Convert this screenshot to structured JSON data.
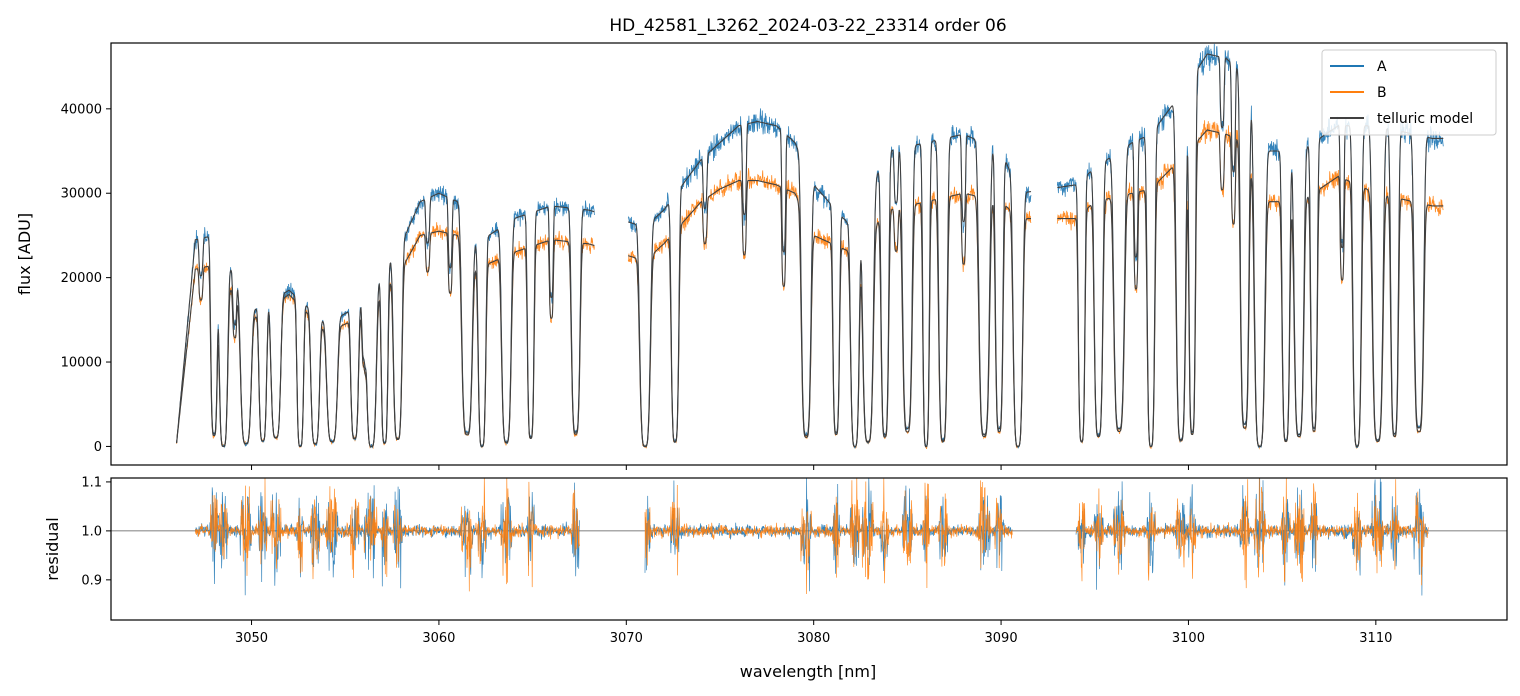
{
  "chart_data": [
    {
      "type": "line",
      "panel": "spectrum",
      "title": "HD_42581_L3262_2024-03-22_23314  order 06",
      "xlabel": "",
      "ylabel": "flux [ADU]",
      "xlim": [
        3042.5,
        3117.0
      ],
      "ylim": [
        -2200,
        47800
      ],
      "yticks": [
        0,
        10000,
        20000,
        30000,
        40000
      ],
      "xticks": [
        3050,
        3060,
        3070,
        3080,
        3090,
        3100,
        3110
      ],
      "grid": false,
      "legend_position": "top-right",
      "segments": [
        [
          3046.0,
          3068.3
        ],
        [
          3070.1,
          3091.6
        ],
        [
          3093.0,
          3113.6
        ]
      ],
      "series": [
        {
          "name": "A",
          "color": "#1f77b4",
          "envelope": {
            "x": [
              3046,
              3047,
              3048,
              3050,
              3052,
              3054,
              3056,
              3058,
              3059,
              3060,
              3061,
              3062,
              3064,
              3066,
              3068,
              3071,
              3072,
              3074,
              3075,
              3076,
              3077,
              3078,
              3079,
              3080,
              3082,
              3084,
              3086,
              3088,
              3090,
              3091,
              3094,
              3095,
              3097,
              3098,
              3100,
              3101,
              3102,
              3103,
              3104,
              3106,
              3108,
              3110,
              3112,
              3113
            ],
            "y": [
              400,
              24500,
              25000,
              16000,
              18500,
              14500,
              17000,
              24000,
              29000,
              30000,
              29000,
              24000,
              27000,
              28500,
              28000,
              26000,
              28000,
              34000,
              36000,
              38000,
              38500,
              38000,
              36000,
              31000,
              26000,
              35000,
              36000,
              37000,
              35000,
              30000,
              31000,
              33000,
              36000,
              37000,
              43000,
              46500,
              46000,
              44000,
              35000,
              35000,
              38000,
              38000,
              37000,
              36500
            ]
          }
        },
        {
          "name": "B",
          "color": "#ff7f0e",
          "envelope": {
            "x": [
              3046,
              3047,
              3048,
              3050,
              3052,
              3054,
              3056,
              3058,
              3059,
              3060,
              3061,
              3062,
              3064,
              3066,
              3068,
              3071,
              3072,
              3074,
              3075,
              3076,
              3077,
              3078,
              3079,
              3080,
              3082,
              3084,
              3086,
              3088,
              3090,
              3091,
              3094,
              3095,
              3097,
              3098,
              3100,
              3101,
              3102,
              3103,
              3104,
              3106,
              3108,
              3110,
              3112,
              3113
            ],
            "y": [
              400,
              21000,
              21500,
              15000,
              18000,
              13500,
              15500,
              21000,
              25000,
              25500,
              25000,
              21000,
              23000,
              24500,
              24000,
              22000,
              24000,
              29000,
              30500,
              31500,
              31500,
              31000,
              30000,
              25000,
              23000,
              28000,
              29000,
              30000,
              29000,
              27000,
              27000,
              29000,
              30000,
              30500,
              35000,
              37500,
              37000,
              36000,
              29000,
              29000,
              32000,
              30000,
              29000,
              28500
            ]
          }
        },
        {
          "name": "telluric model",
          "color": "#404040"
        }
      ]
    },
    {
      "type": "line",
      "panel": "residual",
      "title": "",
      "xlabel": "wavelength [nm]",
      "ylabel": "residual",
      "xlim": [
        3042.5,
        3117.0
      ],
      "ylim": [
        0.818,
        1.108
      ],
      "yticks": [
        0.9,
        1.0,
        1.1
      ],
      "ytick_labels": [
        "0.9",
        "1.0",
        "1.1"
      ],
      "xticks": [
        3050,
        3060,
        3070,
        3080,
        3090,
        3100,
        3110
      ],
      "reference_line": 1.0,
      "segments": [
        [
          3047.0,
          3067.5
        ],
        [
          3071.0,
          3090.6
        ],
        [
          3094.0,
          3112.8
        ]
      ],
      "series": [
        {
          "name": "A",
          "color": "#1f77b4"
        },
        {
          "name": "B",
          "color": "#ff7f0e"
        }
      ]
    }
  ]
}
